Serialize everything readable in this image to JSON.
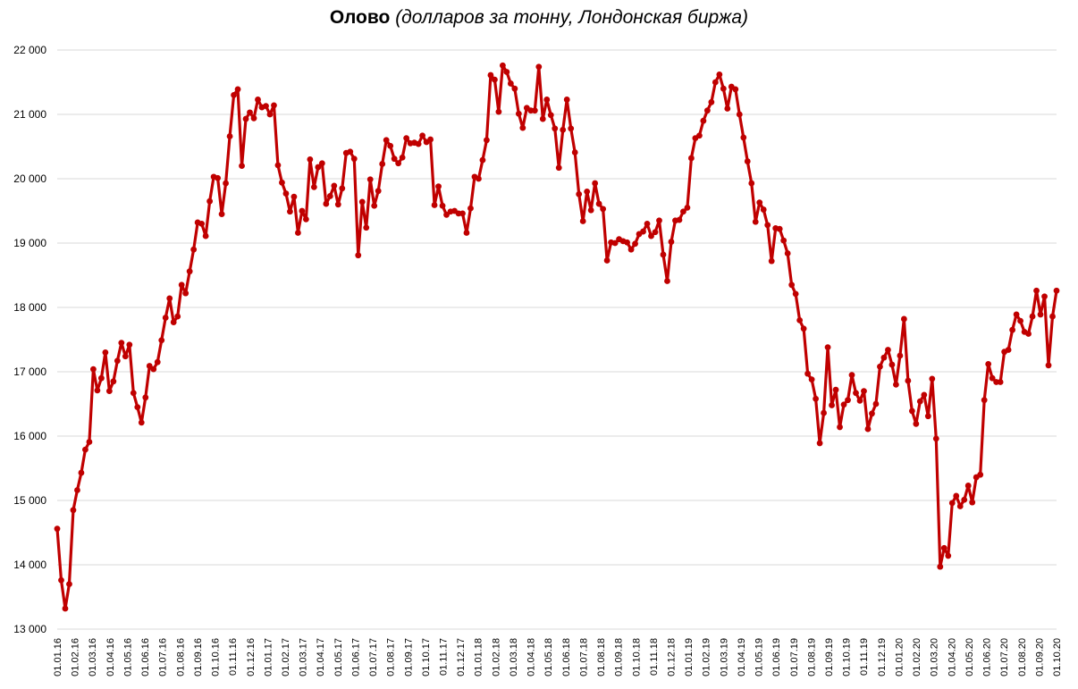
{
  "chart_data": {
    "type": "line",
    "title": "Олово",
    "subtitle": "(долларов за тонну, Лондонская биржа)",
    "xlabel": "",
    "ylabel": "",
    "ylim": [
      13000,
      22000
    ],
    "y_ticks": [
      "13 000",
      "14 000",
      "15 000",
      "16 000",
      "17 000",
      "18 000",
      "19 000",
      "20 000",
      "21 000",
      "22 000"
    ],
    "x_ticks": [
      "01.01.16",
      "01.02.16",
      "01.03.16",
      "01.04.16",
      "01.05.16",
      "01.06.16",
      "01.07.16",
      "01.08.16",
      "01.09.16",
      "01.10.16",
      "01.11.16",
      "01.12.16",
      "01.01.17",
      "01.02.17",
      "01.03.17",
      "01.04.17",
      "01.05.17",
      "01.06.17",
      "01.07.17",
      "01.08.17",
      "01.09.17",
      "01.10.17",
      "01.11.17",
      "01.12.17",
      "01.01.18",
      "01.02.18",
      "01.03.18",
      "01.04.18",
      "01.05.18",
      "01.06.18",
      "01.07.18",
      "01.08.18",
      "01.09.18",
      "01.10.18",
      "01.11.18",
      "01.12.18",
      "01.01.19",
      "01.02.19",
      "01.03.19",
      "01.04.19",
      "01.05.19",
      "01.06.19",
      "01.07.19",
      "01.08.19",
      "01.09.19",
      "01.10.19",
      "01.11.19",
      "01.12.19",
      "01.01.20",
      "01.02.20",
      "01.03.20",
      "01.04.20",
      "01.05.20",
      "01.06.20",
      "01.07.20",
      "01.08.20",
      "01.09.20",
      "01.10.20"
    ],
    "grid": "horizontal",
    "legend": "none",
    "series_color": "#C00000",
    "series": [
      {
        "values": [
          14560,
          13760,
          13320,
          13700,
          14850,
          15160,
          15430,
          15790,
          15910,
          17040,
          16710,
          16900,
          17300,
          16700,
          16850,
          17170,
          17450,
          17240,
          17420,
          16670,
          16450,
          16210,
          16600,
          17090,
          17040,
          17150,
          17490,
          17840,
          18140,
          17770,
          17860,
          18350,
          18220,
          18560,
          18900,
          19320,
          19300,
          19110,
          19650,
          20030,
          20010,
          19450,
          19930,
          20660,
          21300,
          21390,
          20200,
          20930,
          21030,
          20940,
          21230,
          21110,
          21130,
          21000,
          21140,
          20210,
          19940,
          19770,
          19490,
          19720,
          19160,
          19500,
          19370,
          20300,
          19870,
          20180,
          20240,
          19610,
          19730,
          19890,
          19600,
          19850,
          20400,
          20420,
          20310,
          18810,
          19640,
          19240,
          19990,
          19580,
          19810,
          20230,
          20600,
          20510,
          20310,
          20240,
          20330,
          20630,
          20550,
          20560,
          20540,
          20670,
          20570,
          20610,
          19590,
          19880,
          19580,
          19440,
          19490,
          19500,
          19460,
          19460,
          19160,
          19540,
          20030,
          20000,
          20290,
          20600,
          21610,
          21540,
          21040,
          21760,
          21660,
          21480,
          21400,
          21010,
          20790,
          21100,
          21060,
          21060,
          21740,
          20930,
          21230,
          20990,
          20780,
          20170,
          20760,
          21230,
          20780,
          20410,
          19760,
          19340,
          19800,
          19510,
          19930,
          19610,
          19530,
          18730,
          19010,
          19000,
          19060,
          19030,
          19010,
          18900,
          18990,
          19140,
          19180,
          19300,
          19110,
          19170,
          19350,
          18820,
          18410,
          19020,
          19350,
          19360,
          19490,
          19550,
          20320,
          20630,
          20670,
          20900,
          21060,
          21190,
          21500,
          21620,
          21400,
          21090,
          21430,
          21390,
          21000,
          20640,
          20270,
          19930,
          19330,
          19630,
          19520,
          19280,
          18720,
          19230,
          19220,
          19040,
          18840,
          18350,
          18210,
          17800,
          17670,
          16970,
          16880,
          16580,
          15890,
          16360,
          17380,
          16480,
          16720,
          16140,
          16490,
          16560,
          16950,
          16670,
          16550,
          16700,
          16110,
          16350,
          16500,
          17080,
          17220,
          17340,
          17110,
          16800,
          17250,
          17820,
          16860,
          16390,
          16190,
          16540,
          16640,
          16310,
          16890,
          15960,
          13970,
          14260,
          14140,
          14960,
          15070,
          14910,
          15010,
          15230,
          14970,
          15360,
          15400,
          16560,
          17120,
          16900,
          16840,
          16840,
          17310,
          17340,
          17650,
          17890,
          17790,
          17620,
          17590,
          17860,
          18260,
          17890,
          18170,
          17100,
          17860,
          18260
        ]
      }
    ]
  }
}
